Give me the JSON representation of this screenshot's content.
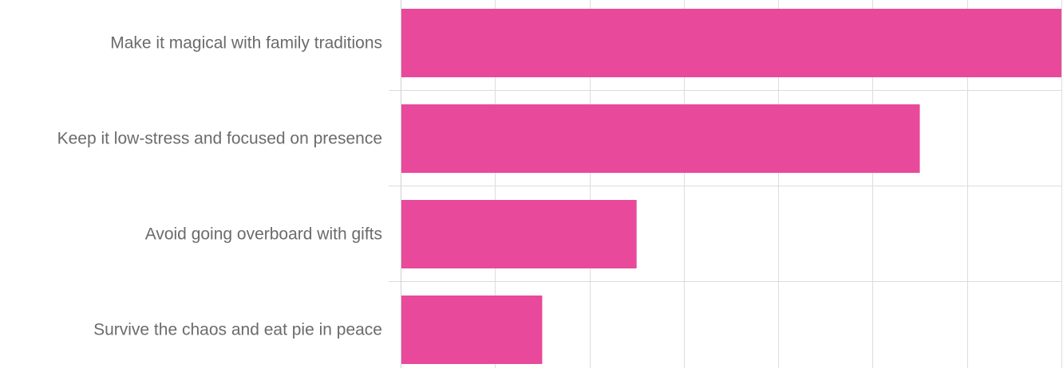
{
  "chart_data": {
    "type": "bar",
    "orientation": "horizontal",
    "categories": [
      "Make it magical with family traditions",
      "Keep it low-stress and focused on presence",
      "Avoid going overboard with gifts",
      "Survive the chaos and eat pie in peace"
    ],
    "values": [
      7,
      5.5,
      2.5,
      1.5
    ],
    "xlim": [
      0,
      7
    ],
    "x_tick_step": 1,
    "grid": true,
    "legend": "none",
    "bar_color": "#e9499a",
    "grid_color": "#dddddd",
    "label_color": "#6b6b6b"
  }
}
